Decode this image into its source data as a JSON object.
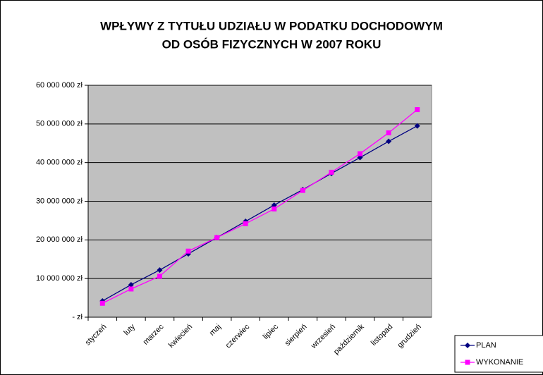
{
  "chart_data": {
    "type": "line",
    "title": [
      "WPŁYWY Z TYTUŁU UDZIAŁU W PODATKU DOCHODOWYM",
      "OD OSÓB FIZYCZNYCH W 2007 ROKU"
    ],
    "categories": [
      "styczeń",
      "luty",
      "marzec",
      "kwiecień",
      "maj",
      "czerwiec",
      "lipiec",
      "sierpień",
      "wrzesień",
      "październik",
      "listopad",
      "grudzień"
    ],
    "series": [
      {
        "name": "PLAN",
        "color": "#000080",
        "marker": "diamond",
        "values": [
          4200000,
          8400000,
          12200000,
          16400000,
          20600000,
          24800000,
          29000000,
          33000000,
          37200000,
          41300000,
          45500000,
          49500000
        ]
      },
      {
        "name": "WYKONANIE",
        "color": "#ff00ff",
        "marker": "square",
        "values": [
          3600000,
          7300000,
          10600000,
          17100000,
          20600000,
          24200000,
          28000000,
          32800000,
          37500000,
          42300000,
          47700000,
          53700000
        ]
      }
    ],
    "ylim": [
      0,
      60000000
    ],
    "yticks": [
      {
        "value": 0,
        "label": "-   zł"
      },
      {
        "value": 10000000,
        "label": "10 000 000 zł"
      },
      {
        "value": 20000000,
        "label": "20 000 000 zł"
      },
      {
        "value": 30000000,
        "label": "30 000 000 zł"
      },
      {
        "value": 40000000,
        "label": "40 000 000 zł"
      },
      {
        "value": 50000000,
        "label": "50 000 000 zł"
      },
      {
        "value": 60000000,
        "label": "60 000 000 zł"
      }
    ],
    "grid": true,
    "legend": "bottom-right",
    "plot_background": "#c0c0c0"
  }
}
